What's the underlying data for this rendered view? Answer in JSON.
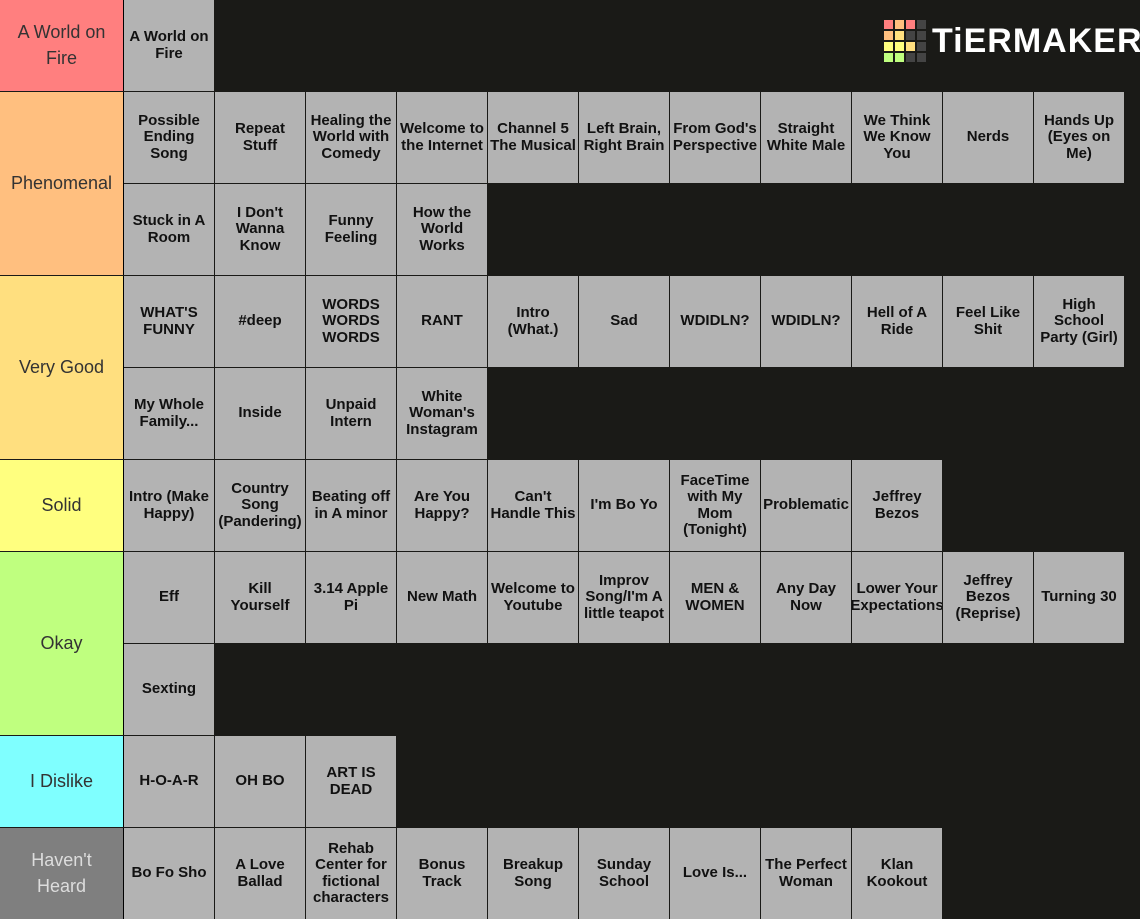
{
  "logo": "TiERMAKER",
  "tiers": [
    {
      "label": "A World on Fire",
      "color": "#ff7f7f",
      "items": [
        "A World on Fire"
      ]
    },
    {
      "label": "Phenomenal",
      "color": "#ffbf7f",
      "items": [
        "Possible Ending Song",
        "Repeat Stuff",
        "Healing the World with Comedy",
        "Welcome to the Internet",
        "Channel 5 The Musical",
        "Left Brain, Right Brain",
        "From God's Perspective",
        "Straight White Male",
        "We Think We Know You",
        "Nerds",
        "Hands Up (Eyes on Me)",
        "Stuck in A Room",
        "I Don't Wanna Know",
        "Funny Feeling",
        "How the World Works"
      ]
    },
    {
      "label": "Very Good",
      "color": "#ffdf7f",
      "items": [
        "WHAT'S FUNNY",
        "#deep",
        "WORDS WORDS WORDS",
        "RANT",
        "Intro (What.)",
        "Sad",
        "WDIDLN?",
        "WDIDLN?",
        "Hell of A Ride",
        "Feel Like Shit",
        "High School Party (Girl)",
        "My Whole Family...",
        "Inside",
        "Unpaid Intern",
        "White Woman's Instagram"
      ]
    },
    {
      "label": "Solid",
      "color": "#ffff7f",
      "items": [
        "Intro (Make Happy)",
        "Country Song (Pandering)",
        "Beating off in A minor",
        "Are You Happy?",
        "Can't Handle This",
        "I'm Bo Yo",
        "FaceTime with My Mom (Tonight)",
        "Problematic",
        "Jeffrey Bezos"
      ]
    },
    {
      "label": "Okay",
      "color": "#bfff7f",
      "items": [
        "Eff",
        "Kill Yourself",
        "3.14 Apple Pi",
        "New Math",
        "Welcome to Youtube",
        "Improv Song/I'm A little teapot",
        "MEN & WOMEN",
        "Any Day Now",
        "Lower Your Expectations",
        "Jeffrey Bezos (Reprise)",
        "Turning 30",
        "Sexting"
      ]
    },
    {
      "label": "I Dislike",
      "color": "#7fffff",
      "items": [
        "H-O-A-R",
        "OH BO",
        "ART IS DEAD"
      ]
    },
    {
      "label": "Haven't Heard",
      "color": "#7f7f7f",
      "items": [
        "Bo Fo Sho",
        "A Love Ballad",
        "Rehab Center for fictional characters",
        "Bonus Track",
        "Breakup Song",
        "Sunday School",
        "Love Is...",
        "The Perfect Woman",
        "Klan Kookout"
      ]
    }
  ]
}
